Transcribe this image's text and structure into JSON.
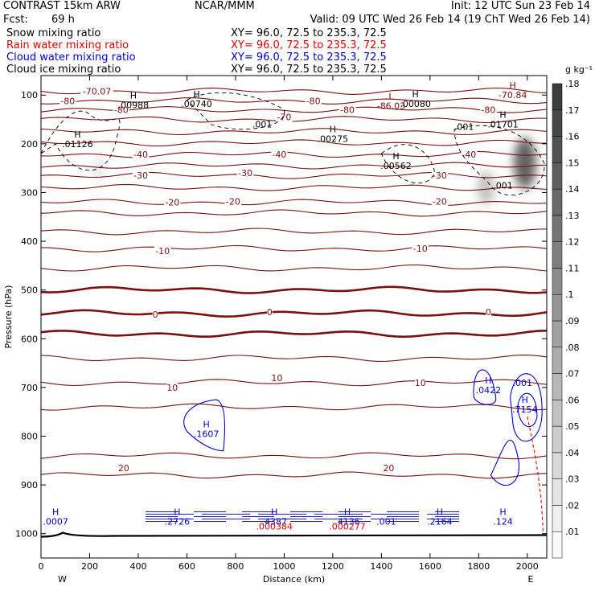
{
  "header": {
    "model": "CONTRAST 15km ARW",
    "center": "NCAR/MMM",
    "init": "Init: 12 UTC Sun 23 Feb 14",
    "fcst_label": "Fcst:",
    "fcst_value": "69 h",
    "valid": "Valid: 09 UTC Wed 26 Feb 14 (19 ChT Wed 26 Feb 14)",
    "fields": [
      {
        "name": "Snow mixing ratio",
        "xy": "XY=  96.0, 72.5 to 235.3, 72.5",
        "color": "#000000"
      },
      {
        "name": "Rain water mixing ratio",
        "xy": "XY=  96.0, 72.5 to 235.3, 72.5",
        "color": "#dd0000"
      },
      {
        "name": "Cloud water mixing ratio",
        "xy": "XY=  96.0, 72.5 to 235.3, 72.5",
        "color": "#0000cc"
      },
      {
        "name": "Cloud ice mixing ratio",
        "xy": "XY=  96.0, 72.5 to 235.3, 72.5",
        "color": "#000000"
      }
    ]
  },
  "chart_data": {
    "type": "contour-cross-section",
    "xlabel": "Distance (km)",
    "ylabel": "Pressure (hPa)",
    "xlim": [
      0,
      2080
    ],
    "ylim": [
      1050,
      60
    ],
    "x_ticks": [
      0,
      200,
      400,
      600,
      800,
      1000,
      1200,
      1400,
      1600,
      1800,
      2000
    ],
    "y_ticks": [
      100,
      200,
      300,
      400,
      500,
      600,
      700,
      800,
      900,
      1000
    ],
    "x_end_labels": {
      "left": "W",
      "right": "E"
    },
    "colorbar": {
      "unit": "g kg⁻¹",
      "levels": [
        ".01",
        ".02",
        ".03",
        ".04",
        ".05",
        ".06",
        ".07",
        ".08",
        ".09",
        ".1",
        ".11",
        ".12",
        ".13",
        ".14",
        ".15",
        ".16",
        ".17",
        ".18"
      ]
    },
    "temperature_contours": {
      "color": "#7a1010",
      "lines": [
        {
          "temp": -70,
          "p": 92
        },
        {
          "temp": -80,
          "p": 112
        },
        {
          "temp": -80,
          "p": 130
        },
        {
          "temp": -70,
          "p": 150
        },
        {
          "temp": -60,
          "p": 175
        },
        {
          "temp": -50,
          "p": 198
        },
        {
          "temp": -40,
          "p": 222
        },
        {
          "temp": -40,
          "p": 245
        },
        {
          "temp": -30,
          "p": 265
        },
        {
          "temp": -30,
          "p": 290
        },
        {
          "temp": -20,
          "p": 320
        },
        {
          "temp": -20,
          "p": 342
        },
        {
          "temp": -10,
          "p": 380
        },
        {
          "temp": -10,
          "p": 415
        },
        {
          "temp": -10,
          "p": 455
        },
        {
          "temp": 0,
          "p": 500
        },
        {
          "temp": 0,
          "p": 548
        },
        {
          "temp": 0,
          "p": 590
        },
        {
          "temp": 10,
          "p": 640
        },
        {
          "temp": 10,
          "p": 690
        },
        {
          "temp": 20,
          "p": 740
        },
        {
          "temp": 20,
          "p": 840
        },
        {
          "temp": 20,
          "p": 880
        }
      ],
      "labels": [
        {
          "text": "-70.07",
          "x": 230,
          "p": 92
        },
        {
          "text": "-80",
          "x": 110,
          "p": 112
        },
        {
          "text": "-80",
          "x": 330,
          "p": 130
        },
        {
          "text": "-80",
          "x": 1120,
          "p": 112
        },
        {
          "text": "-80",
          "x": 1260,
          "p": 130
        },
        {
          "text": "-80",
          "x": 1840,
          "p": 130
        },
        {
          "text": "-70",
          "x": 1000,
          "p": 145
        },
        {
          "text": "-40",
          "x": 410,
          "p": 222
        },
        {
          "text": "-40",
          "x": 980,
          "p": 222
        },
        {
          "text": "-40",
          "x": 1760,
          "p": 222
        },
        {
          "text": "-30",
          "x": 410,
          "p": 265
        },
        {
          "text": "-30",
          "x": 840,
          "p": 260
        },
        {
          "text": "-30",
          "x": 1640,
          "p": 265
        },
        {
          "text": "-20",
          "x": 540,
          "p": 320
        },
        {
          "text": "-20",
          "x": 790,
          "p": 318
        },
        {
          "text": "-20",
          "x": 1640,
          "p": 318
        },
        {
          "text": "-10",
          "x": 500,
          "p": 420
        },
        {
          "text": "-10",
          "x": 1560,
          "p": 415
        },
        {
          "text": "0",
          "x": 470,
          "p": 550
        },
        {
          "text": "0",
          "x": 940,
          "p": 545
        },
        {
          "text": "0",
          "x": 1840,
          "p": 545
        },
        {
          "text": "10",
          "x": 540,
          "p": 700
        },
        {
          "text": "10",
          "x": 970,
          "p": 680
        },
        {
          "text": "10",
          "x": 1560,
          "p": 690
        },
        {
          "text": "20",
          "x": 340,
          "p": 865
        },
        {
          "text": "20",
          "x": 1430,
          "p": 865
        }
      ]
    },
    "extrema_labels": [
      {
        "kind": "H",
        "value": ".00988",
        "x": 380,
        "p": 110,
        "color": "#000000"
      },
      {
        "kind": "H",
        "value": ".00740",
        "x": 640,
        "p": 108,
        "color": "#000000"
      },
      {
        "kind": "H",
        "value": ".01126",
        "x": 150,
        "p": 190,
        "color": "#000000"
      },
      {
        "kind": "H",
        "value": ".00275",
        "x": 1200,
        "p": 180,
        "color": "#000000"
      },
      {
        "kind": "H",
        "value": ".00562",
        "x": 1460,
        "p": 235,
        "color": "#000000"
      },
      {
        "kind": "H",
        "value": ".00080",
        "x": 1540,
        "p": 108,
        "color": "#000000"
      },
      {
        "kind": "H",
        "value": ".01701",
        "x": 1900,
        "p": 150,
        "color": "#000000"
      },
      {
        "kind": "H",
        "value": "-70.84",
        "x": 1940,
        "p": 90,
        "color": "#7a1010"
      },
      {
        "kind": "L",
        "value": "-86.03",
        "x": 1440,
        "p": 112,
        "color": "#7a1010"
      },
      {
        "kind": "H",
        "value": ".1607",
        "x": 680,
        "p": 785,
        "color": "#0000cc"
      },
      {
        "kind": "H",
        "value": ".0422",
        "x": 1840,
        "p": 695,
        "color": "#0000cc"
      },
      {
        "kind": "H",
        "value": ".7154",
        "x": 1990,
        "p": 735,
        "color": "#0000cc"
      },
      {
        "kind": "H",
        "value": ".0007",
        "x": 60,
        "p": 965,
        "color": "#0000cc"
      },
      {
        "kind": "H",
        "value": ".2726",
        "x": 560,
        "p": 965,
        "color": "#0000cc"
      },
      {
        "kind": "H",
        "value": ".4387",
        "x": 960,
        "p": 965,
        "color": "#0000cc"
      },
      {
        "kind": "H",
        "value": ".4136",
        "x": 1260,
        "p": 965,
        "color": "#0000cc"
      },
      {
        "kind": "H",
        "value": ".2164",
        "x": 1640,
        "p": 965,
        "color": "#0000cc"
      },
      {
        "kind": "H",
        "value": ".124",
        "x": 1900,
        "p": 965,
        "color": "#0000cc"
      }
    ],
    "value_labels": [
      {
        "text": ".001",
        "x": 910,
        "p": 160,
        "color": "#000000"
      },
      {
        "text": ".001",
        "x": 1740,
        "p": 165,
        "color": "#000000"
      },
      {
        "text": ".001",
        "x": 1900,
        "p": 285,
        "color": "#000000"
      },
      {
        "text": ".001",
        "x": 1980,
        "p": 690,
        "color": "#0000cc"
      },
      {
        "text": ".001",
        "x": 1420,
        "p": 975,
        "color": "#0000cc"
      },
      {
        "text": ".000384",
        "x": 960,
        "p": 985,
        "color": "#dd0000"
      },
      {
        "text": ".000277",
        "x": 1260,
        "p": 985,
        "color": "#dd0000"
      }
    ],
    "shaded_snow_maxima": [
      {
        "x": 1990,
        "p": 240,
        "value": 0.15
      },
      {
        "x": 1830,
        "p": 290,
        "value": 0.06
      },
      {
        "x": 240,
        "p": 250,
        "value": 0.02
      }
    ],
    "surface_pressure_line": {
      "p": 1003,
      "color": "#000000"
    }
  }
}
